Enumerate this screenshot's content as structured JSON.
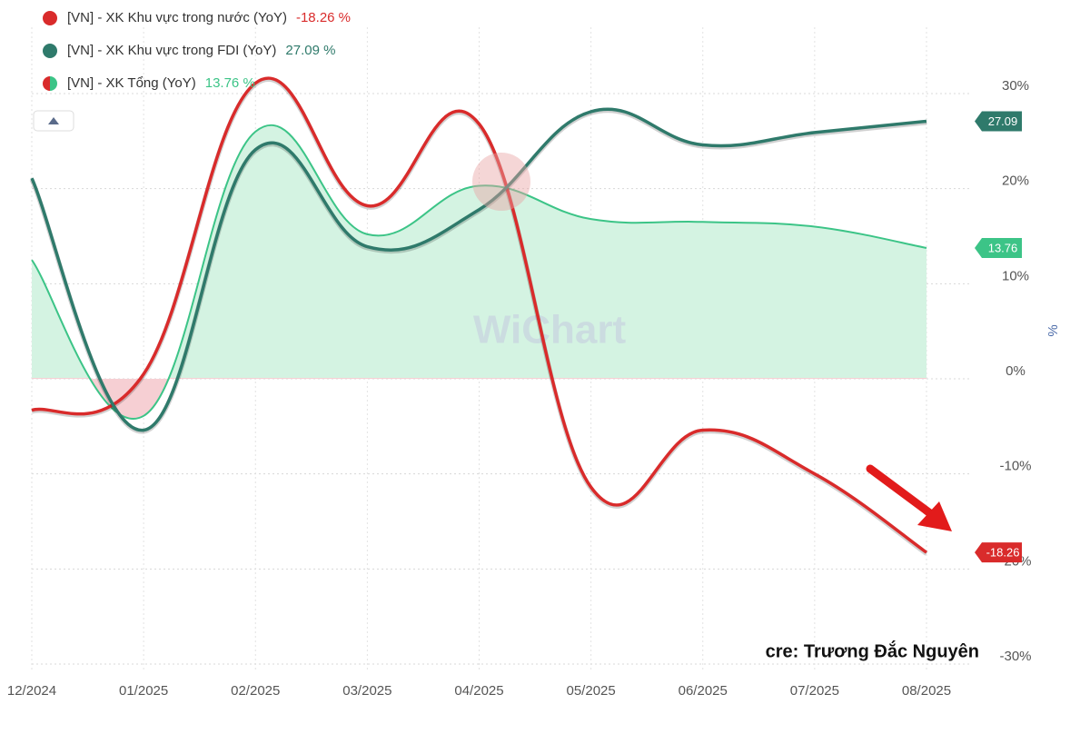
{
  "chart_data": {
    "type": "line",
    "categories": [
      "12/2024",
      "01/2025",
      "02/2025",
      "03/2025",
      "04/2025",
      "05/2025",
      "06/2025",
      "07/2025",
      "08/2025"
    ],
    "series": [
      {
        "name": "[VN] - XK Khu vực trong nước (YoY)",
        "legend_label": "-18.26 %",
        "color": "#d92b2b",
        "values": [
          -3.3,
          0.5,
          31.1,
          18.2,
          26.8,
          -11.4,
          -5.4,
          -10.0,
          -18.26
        ]
      },
      {
        "name": "[VN] - XK Khu vực trong FDI (YoY)",
        "legend_label": "27.09 %",
        "color": "#2f7a6b",
        "values": [
          21.1,
          -5.4,
          24.1,
          13.9,
          17.8,
          28.1,
          24.6,
          25.9,
          27.09
        ]
      },
      {
        "name": "[VN] - XK Tổng (YoY)",
        "legend_label": "13.76 %",
        "color": "#3cc487",
        "area": true,
        "values": [
          12.5,
          -3.9,
          26.0,
          15.2,
          20.3,
          16.8,
          16.5,
          16.0,
          13.76
        ]
      }
    ],
    "ylim": [
      -30,
      30
    ],
    "yticks": [
      {
        "value": -30,
        "label": "-30%"
      },
      {
        "value": -20,
        "label": "-20%"
      },
      {
        "value": -10,
        "label": "-10%"
      },
      {
        "value": 0,
        "label": "0%"
      },
      {
        "value": 10,
        "label": "10%"
      },
      {
        "value": 20,
        "label": "20%"
      },
      {
        "value": 30,
        "label": "30%"
      }
    ],
    "y_label": "%",
    "grid": true,
    "watermark": "WiChart",
    "credit": "cre: Trương Đắc Nguyên"
  }
}
